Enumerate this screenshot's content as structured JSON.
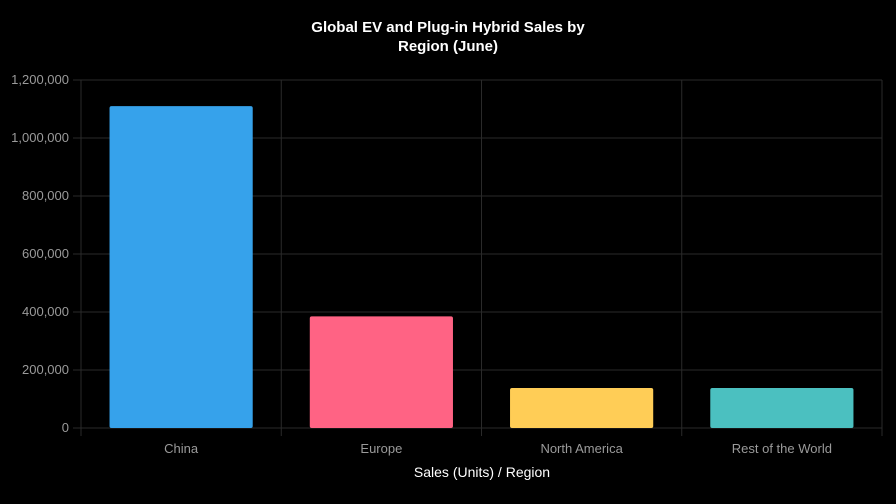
{
  "chart_data": {
    "type": "bar",
    "title_lines": [
      "Global EV and Plug-in Hybrid Sales by",
      "Region (June)"
    ],
    "xlabel": "Sales (Units) / Region",
    "ylabel": "",
    "categories": [
      "China",
      "Europe",
      "North America",
      "Rest of the World"
    ],
    "values": [
      1110000,
      385000,
      138000,
      138000
    ],
    "ylim": [
      0,
      1200000
    ],
    "yticks": [
      0,
      200000,
      400000,
      600000,
      800000,
      1000000,
      1200000
    ],
    "ytick_labels": [
      "0",
      "200,000",
      "400,000",
      "600,000",
      "800,000",
      "1,000,000",
      "1,200,000"
    ],
    "bar_colors": [
      "#36a2eb",
      "#ff6384",
      "#ffcd56",
      "#4bc0c0"
    ],
    "grid": true,
    "legend": "none"
  },
  "colors": {
    "background": "#000000",
    "grid": "#2a2a2a",
    "tick_text": "#9a9a9a",
    "title_text": "#ffffff"
  }
}
